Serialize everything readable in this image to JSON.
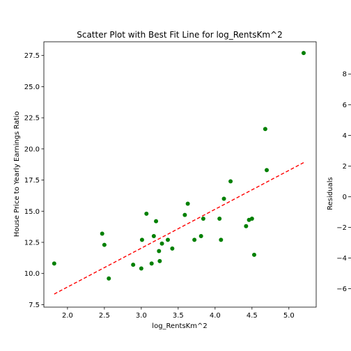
{
  "chart_data": [
    {
      "type": "scatter",
      "title": "Scatter Plot with Best Fit Line for log_RentsKm^2",
      "xlabel": "log_RentsKm^2",
      "ylabel": "House Price to Yearly Earnings Ratio",
      "xlim": [
        1.68,
        5.37
      ],
      "ylim": [
        7.3,
        28.6
      ],
      "x_ticks": [
        2.0,
        2.5,
        3.0,
        3.5,
        4.0,
        4.5,
        5.0
      ],
      "x_tick_labels": [
        "2.0",
        "2.5",
        "3.0",
        "3.5",
        "4.0",
        "4.5",
        "5.0"
      ],
      "y_ticks": [
        7.5,
        10.0,
        12.5,
        15.0,
        17.5,
        20.0,
        22.5,
        25.0,
        27.5
      ],
      "y_tick_labels": [
        "7.5",
        "10.0",
        "12.5",
        "15.0",
        "17.5",
        "20.0",
        "22.5",
        "25.0",
        "27.5"
      ],
      "grid": false,
      "point_color": "#008000",
      "fit_line_color": "#ff0000",
      "points": [
        {
          "x": 1.82,
          "y": 10.8
        },
        {
          "x": 2.47,
          "y": 13.2
        },
        {
          "x": 2.5,
          "y": 12.3
        },
        {
          "x": 2.56,
          "y": 9.6
        },
        {
          "x": 2.89,
          "y": 10.7
        },
        {
          "x": 3.0,
          "y": 10.4
        },
        {
          "x": 3.01,
          "y": 12.7
        },
        {
          "x": 3.07,
          "y": 14.8
        },
        {
          "x": 3.14,
          "y": 10.8
        },
        {
          "x": 3.17,
          "y": 13.0
        },
        {
          "x": 3.2,
          "y": 14.2
        },
        {
          "x": 3.24,
          "y": 11.8
        },
        {
          "x": 3.25,
          "y": 11.0
        },
        {
          "x": 3.28,
          "y": 12.4
        },
        {
          "x": 3.36,
          "y": 12.7
        },
        {
          "x": 3.42,
          "y": 12.0
        },
        {
          "x": 3.59,
          "y": 14.7
        },
        {
          "x": 3.63,
          "y": 15.6
        },
        {
          "x": 3.72,
          "y": 12.7
        },
        {
          "x": 3.81,
          "y": 13.0
        },
        {
          "x": 3.84,
          "y": 14.4
        },
        {
          "x": 4.06,
          "y": 14.4
        },
        {
          "x": 4.08,
          "y": 12.7
        },
        {
          "x": 4.12,
          "y": 16.0
        },
        {
          "x": 4.21,
          "y": 17.4
        },
        {
          "x": 4.42,
          "y": 13.8
        },
        {
          "x": 4.46,
          "y": 14.3
        },
        {
          "x": 4.5,
          "y": 14.4
        },
        {
          "x": 4.53,
          "y": 11.5
        },
        {
          "x": 4.68,
          "y": 21.6
        },
        {
          "x": 4.7,
          "y": 18.3
        },
        {
          "x": 5.2,
          "y": 27.7
        }
      ],
      "fit_line": {
        "x": [
          1.82,
          5.2
        ],
        "y": [
          8.35,
          18.9
        ]
      }
    },
    {
      "type": "scatter",
      "ylabel": "Residuals",
      "y_ticks": [
        8,
        6,
        4,
        2,
        0,
        -2,
        -4,
        -6
      ],
      "y_tick_labels": [
        "8",
        "6",
        "4",
        "2",
        "0",
        "−2",
        "−4",
        "−6"
      ],
      "ylim": [
        -7.2,
        10.1
      ]
    }
  ]
}
